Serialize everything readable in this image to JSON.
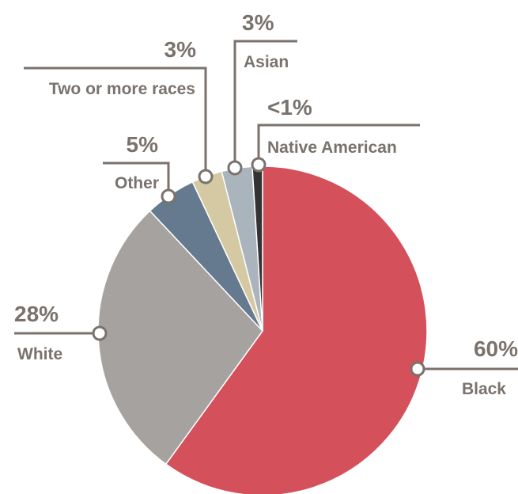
{
  "chart_data": {
    "type": "pie",
    "slices": [
      {
        "key": "black",
        "label": "Black",
        "display": "60%",
        "value": 60,
        "color": "#d4515c"
      },
      {
        "key": "white",
        "label": "White",
        "display": "28%",
        "value": 28,
        "color": "#a5a2a0"
      },
      {
        "key": "other",
        "label": "Other",
        "display": "5%",
        "value": 5,
        "color": "#657a8e"
      },
      {
        "key": "two-or-more",
        "label": "Two or more races",
        "display": "3%",
        "value": 3,
        "color": "#d4c9a3"
      },
      {
        "key": "asian",
        "label": "Asian",
        "display": "3%",
        "value": 3,
        "color": "#aab4bd"
      },
      {
        "key": "native-american",
        "label": "Native American",
        "display": "<1%",
        "value": 1,
        "color": "#333333"
      }
    ],
    "title": "",
    "legend": "none"
  }
}
